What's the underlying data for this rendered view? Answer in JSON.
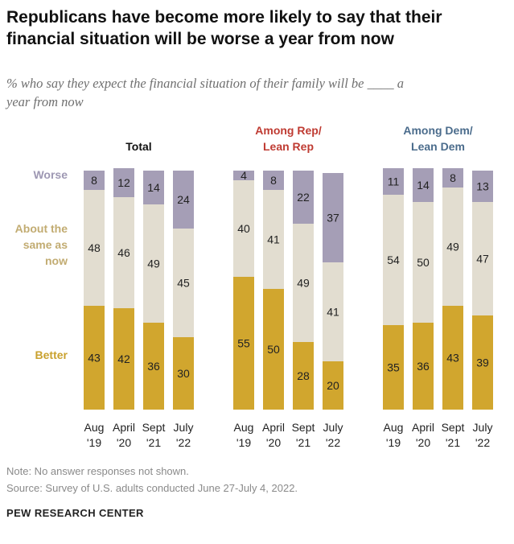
{
  "title_line1": "Republicans have become more likely to say that their",
  "title_line2": "financial situation will be worse a year from now",
  "subtitle_line1": "% who say they expect the financial situation of their family will be ____ a",
  "subtitle_line2": "year from now",
  "note": "Note: No answer responses not shown.",
  "source": "Source: Survey of U.S. adults conducted June 27-July 4, 2022.",
  "brand": "PEW RESEARCH CENTER",
  "chart_data": {
    "type": "stacked-bar",
    "ylim": [
      0,
      100
    ],
    "row_labels": [
      {
        "key": "worse",
        "lines": [
          "Worse"
        ]
      },
      {
        "key": "same",
        "lines": [
          "About the",
          "same as",
          "now"
        ]
      },
      {
        "key": "better",
        "lines": [
          "Better"
        ]
      }
    ],
    "colors": {
      "better": "#d1a62e",
      "same": "#e2ddd0",
      "worse": "#a59eb6",
      "label_worse": "#9e98b3",
      "label_same": "#c2ac72",
      "label_better": "#c9a12e",
      "rep_heading": "#bf3b32",
      "dem_heading": "#4b6c8c"
    },
    "categories": [
      [
        "Aug",
        "'19"
      ],
      [
        "April",
        "'20"
      ],
      [
        "Sept",
        "'21"
      ],
      [
        "July",
        "'22"
      ]
    ],
    "groups": [
      {
        "name": "Total",
        "heading_lines": [
          "Total"
        ],
        "color_key": "total",
        "better": [
          43,
          42,
          36,
          30
        ],
        "same": [
          48,
          46,
          49,
          45
        ],
        "worse": [
          8,
          12,
          14,
          24
        ]
      },
      {
        "name": "Among Rep/Lean Rep",
        "heading_lines": [
          "Among Rep/",
          "Lean Rep"
        ],
        "color_key": "rep_heading",
        "better": [
          55,
          50,
          28,
          20
        ],
        "same": [
          40,
          41,
          49,
          41
        ],
        "worse": [
          4,
          8,
          22,
          37
        ]
      },
      {
        "name": "Among Dem/Lean Dem",
        "heading_lines": [
          "Among Dem/",
          "Lean Dem"
        ],
        "color_key": "dem_heading",
        "better": [
          35,
          36,
          43,
          39
        ],
        "same": [
          54,
          50,
          49,
          47
        ],
        "worse": [
          11,
          14,
          8,
          13
        ]
      }
    ]
  }
}
